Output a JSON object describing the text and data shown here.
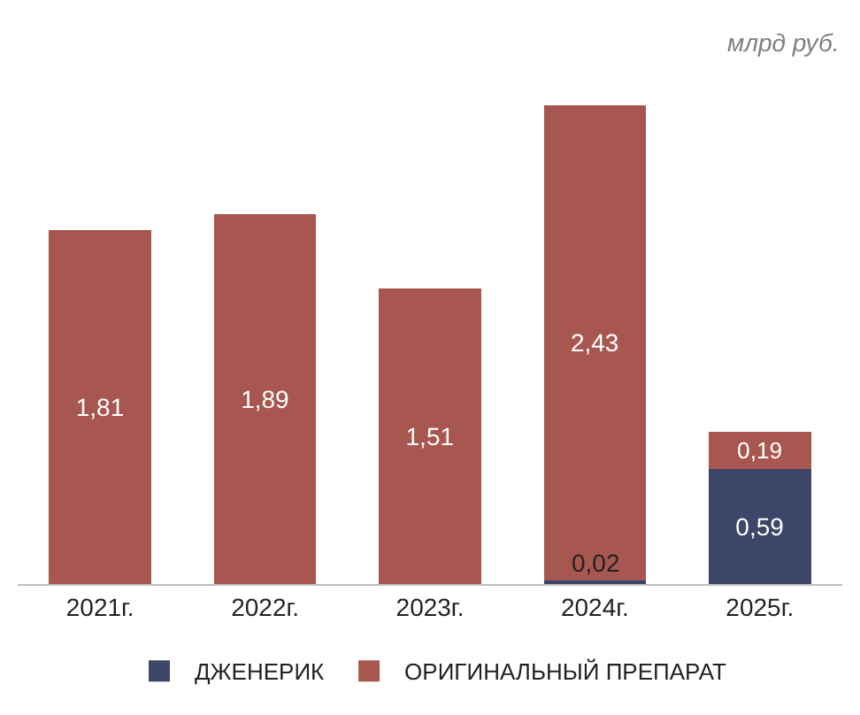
{
  "chart_data": {
    "type": "bar",
    "stacked": true,
    "categories": [
      "2021г.",
      "2022г.",
      "2023г.",
      "2024г.",
      "2025г."
    ],
    "series": [
      {
        "name": "ДЖЕНЕРИК",
        "color": "#3b4668",
        "values": [
          null,
          null,
          null,
          0.02,
          0.59
        ],
        "value_labels": [
          null,
          null,
          null,
          "0,02",
          "0,59"
        ]
      },
      {
        "name": "ОРИГИНАЛЬНЫЙ ПРЕПАРАТ",
        "color": "#a85750",
        "values": [
          1.81,
          1.89,
          1.51,
          2.43,
          0.19
        ],
        "value_labels": [
          "1,81",
          "1,89",
          "1,51",
          "2,43",
          "0,19"
        ]
      }
    ],
    "annotations": [
      "млрд руб."
    ],
    "legend": "bottom"
  }
}
